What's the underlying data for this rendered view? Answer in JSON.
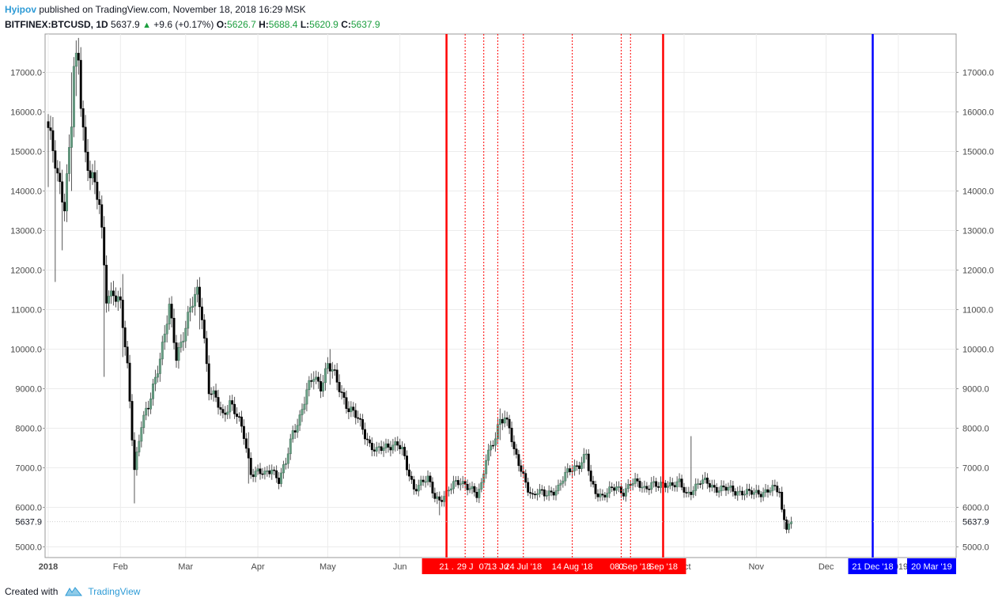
{
  "header": {
    "author": "Hyipov",
    "published": "published on TradingView.com, November 18, 2018 16:29 MSK",
    "symbol": "BITFINEX:BTCUSD, 1D",
    "last": "5637.9",
    "change": "+9.6 (+0.17%)",
    "o_label": "O:",
    "o_value": "5626.7",
    "h_label": "H:",
    "h_value": "5688.4",
    "l_label": "L:",
    "l_value": "5620.9",
    "c_label": "C:",
    "c_value": "5637.9"
  },
  "footer": {
    "created_with": "Created with",
    "brand": "TradingView"
  },
  "colors": {
    "candle_up": "#6aa086",
    "candle_down": "#000000",
    "wick": "#555555",
    "red_line": "#ff0000",
    "blue_line": "#0000ff",
    "accent": "#2e9bd6"
  },
  "chart_data": {
    "type": "candlestick",
    "title": "BITFINEX:BTCUSD, 1D",
    "ylim": [
      4700,
      17800
    ],
    "y_ticks": [
      5000,
      6000,
      7000,
      8000,
      9000,
      10000,
      11000,
      12000,
      13000,
      14000,
      15000,
      16000,
      17000
    ],
    "y_tick_labels": [
      "5000.0",
      "6000.0",
      "7000.0",
      "8000.0",
      "9000.0",
      "10000.0",
      "11000.0",
      "12000.0",
      "13000.0",
      "14000.0",
      "15000.0",
      "16000.0",
      "17000.0"
    ],
    "x_ticks": [
      {
        "day": 0,
        "label": "2018"
      },
      {
        "day": 31,
        "label": "Feb"
      },
      {
        "day": 59,
        "label": "Mar"
      },
      {
        "day": 90,
        "label": "Apr"
      },
      {
        "day": 120,
        "label": "May"
      },
      {
        "day": 151,
        "label": "Jun"
      },
      {
        "day": 273,
        "label": "Oct"
      },
      {
        "day": 304,
        "label": "Nov"
      },
      {
        "day": 334,
        "label": "Dec"
      },
      {
        "day": 365,
        "label": "2019"
      }
    ],
    "last_price_label": "5637.9",
    "last_price": 5637.9,
    "anchors": [
      [
        0,
        15600
      ],
      [
        4,
        14300
      ],
      [
        7,
        13700
      ],
      [
        10,
        15800
      ],
      [
        11,
        17100
      ],
      [
        13,
        17200
      ],
      [
        14,
        16200
      ],
      [
        16,
        14900
      ],
      [
        19,
        14400
      ],
      [
        22,
        13600
      ],
      [
        25,
        11300
      ],
      [
        28,
        11500
      ],
      [
        31,
        11100
      ],
      [
        34,
        9500
      ],
      [
        37,
        7000
      ],
      [
        40,
        8100
      ],
      [
        43,
        8500
      ],
      [
        46,
        9300
      ],
      [
        49,
        10100
      ],
      [
        52,
        11000
      ],
      [
        55,
        9800
      ],
      [
        58,
        10400
      ],
      [
        61,
        11000
      ],
      [
        64,
        11400
      ],
      [
        66,
        10900
      ],
      [
        69,
        9000
      ],
      [
        72,
        8700
      ],
      [
        75,
        8300
      ],
      [
        78,
        8700
      ],
      [
        81,
        8300
      ],
      [
        84,
        7800
      ],
      [
        87,
        6900
      ],
      [
        90,
        6900
      ],
      [
        93,
        6800
      ],
      [
        96,
        7000
      ],
      [
        99,
        6700
      ],
      [
        102,
        7100
      ],
      [
        105,
        7900
      ],
      [
        108,
        8300
      ],
      [
        111,
        8900
      ],
      [
        114,
        9300
      ],
      [
        117,
        9100
      ],
      [
        120,
        9600
      ],
      [
        123,
        9300
      ],
      [
        126,
        8900
      ],
      [
        129,
        8500
      ],
      [
        132,
        8300
      ],
      [
        135,
        8000
      ],
      [
        138,
        7600
      ],
      [
        141,
        7400
      ],
      [
        144,
        7500
      ],
      [
        147,
        7600
      ],
      [
        150,
        7600
      ],
      [
        152,
        7400
      ],
      [
        154,
        7000
      ],
      [
        157,
        6500
      ],
      [
        160,
        6600
      ],
      [
        163,
        6700
      ],
      [
        166,
        6300
      ],
      [
        168,
        6200
      ],
      [
        171,
        6300
      ],
      [
        174,
        6600
      ],
      [
        177,
        6700
      ],
      [
        180,
        6500
      ],
      [
        182,
        6400
      ],
      [
        184,
        6300
      ],
      [
        186,
        6600
      ],
      [
        188,
        7300
      ],
      [
        190,
        7500
      ],
      [
        192,
        7700
      ],
      [
        194,
        8200
      ],
      [
        196,
        8300
      ],
      [
        198,
        8100
      ],
      [
        200,
        7400
      ],
      [
        203,
        6900
      ],
      [
        206,
        6500
      ],
      [
        208,
        6300
      ],
      [
        210,
        6400
      ],
      [
        213,
        6300
      ],
      [
        216,
        6400
      ],
      [
        219,
        6500
      ],
      [
        222,
        6800
      ],
      [
        225,
        7000
      ],
      [
        228,
        7100
      ],
      [
        231,
        7300
      ],
      [
        233,
        6600
      ],
      [
        235,
        6400
      ],
      [
        238,
        6300
      ],
      [
        241,
        6400
      ],
      [
        244,
        6500
      ],
      [
        247,
        6400
      ],
      [
        250,
        6600
      ],
      [
        253,
        6600
      ],
      [
        256,
        6500
      ],
      [
        259,
        6600
      ],
      [
        262,
        6500
      ],
      [
        265,
        6600
      ],
      [
        268,
        6600
      ],
      [
        271,
        6600
      ],
      [
        274,
        6300
      ],
      [
        277,
        6500
      ],
      [
        280,
        6650
      ],
      [
        283,
        6600
      ],
      [
        286,
        6500
      ],
      [
        289,
        6480
      ],
      [
        292,
        6450
      ],
      [
        295,
        6400
      ],
      [
        298,
        6400
      ],
      [
        301,
        6350
      ],
      [
        304,
        6350
      ],
      [
        307,
        6400
      ],
      [
        310,
        6450
      ],
      [
        312,
        6450
      ],
      [
        314,
        6400
      ],
      [
        315,
        5900
      ],
      [
        317,
        5550
      ],
      [
        319,
        5637.9
      ]
    ],
    "spikes": [
      {
        "day": 0,
        "high": 15700,
        "low": 14100
      },
      {
        "day": 3,
        "high": 14800,
        "low": 11700
      },
      {
        "day": 6,
        "high": 13900,
        "low": 12500
      },
      {
        "day": 10,
        "high": 17000,
        "low": 14000
      },
      {
        "day": 12,
        "high": 17300,
        "low": 16400
      },
      {
        "day": 24,
        "high": 12800,
        "low": 9300
      },
      {
        "day": 32,
        "high": 11900,
        "low": 9800
      },
      {
        "day": 37,
        "high": 7900,
        "low": 6100
      },
      {
        "day": 65,
        "high": 11700,
        "low": 10500
      },
      {
        "day": 86,
        "high": 7900,
        "low": 6600
      },
      {
        "day": 121,
        "high": 10000,
        "low": 9100
      },
      {
        "day": 168,
        "high": 6400,
        "low": 5800
      },
      {
        "day": 194,
        "high": 8500,
        "low": 7700
      },
      {
        "day": 276,
        "high": 7800,
        "low": 6300
      },
      {
        "day": 316,
        "high": 5700,
        "low": 5450
      }
    ],
    "vlines": [
      {
        "day": 171,
        "color": "red",
        "style": "solid",
        "label": "21 ."
      },
      {
        "day": 179,
        "color": "red",
        "style": "dotted",
        "label": "29 J"
      },
      {
        "day": 187,
        "color": "red",
        "style": "dotted",
        "label": "07"
      },
      {
        "day": 193,
        "color": "red",
        "style": "dotted",
        "label": "13 Ju"
      },
      {
        "day": 204,
        "color": "red",
        "style": "dotted",
        "label": "24 Jul '18"
      },
      {
        "day": 225,
        "color": "red",
        "style": "dotted",
        "label": "14 Aug '18"
      },
      {
        "day": 246,
        "color": "red",
        "style": "dotted",
        "label": "0"
      },
      {
        "day": 250,
        "color": "red",
        "style": "dotted",
        "label": "08 Sep '18"
      },
      {
        "day": 264,
        "color": "red",
        "style": "solid",
        "label": "Sep '18"
      },
      {
        "day": 354,
        "color": "blue",
        "style": "solid",
        "label": "21 Dec '18"
      },
      {
        "day": 443,
        "color": "blue",
        "style": "none",
        "label": "20 Mar '19"
      }
    ]
  }
}
